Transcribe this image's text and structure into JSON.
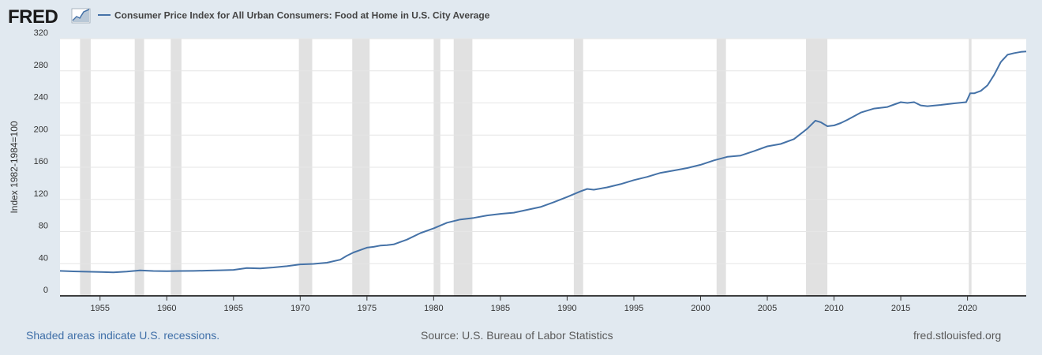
{
  "header": {
    "logo_text": "FRED",
    "legend_label": "Consumer Price Index for All Urban Consumers: Food at Home in U.S. City Average"
  },
  "footer": {
    "recessions_note": "Shaded areas indicate U.S. recessions.",
    "source": "Source: U.S. Bureau of Labor Statistics",
    "site": "fred.stlouisfed.org"
  },
  "colors": {
    "line": "#4572a7",
    "recession": "#e1e1e1",
    "plot_bg": "#ffffff",
    "page_bg": "#e1e9f0",
    "grid": "#e6e6e6",
    "footer_link": "#3f6fa8",
    "footer_gray": "#5a5a5a"
  },
  "chart_data": {
    "type": "line",
    "title": "",
    "xlabel": "",
    "ylabel": "Index 1982-1984=100",
    "xlim": [
      1952.0,
      2024.4
    ],
    "ylim": [
      0,
      320
    ],
    "y_ticks": [
      0,
      40,
      80,
      120,
      160,
      200,
      240,
      280,
      320
    ],
    "x_ticks": [
      1955,
      1960,
      1965,
      1970,
      1975,
      1980,
      1985,
      1990,
      1995,
      2000,
      2005,
      2010,
      2015,
      2020
    ],
    "grid": true,
    "legend_position": "top-left",
    "recessions": [
      [
        1953.5,
        1954.3
      ],
      [
        1957.6,
        1958.3
      ],
      [
        1960.3,
        1961.1
      ],
      [
        1969.9,
        1970.9
      ],
      [
        1973.9,
        1975.2
      ],
      [
        1980.0,
        1980.5
      ],
      [
        1981.5,
        1982.9
      ],
      [
        1990.5,
        1991.2
      ],
      [
        2001.2,
        2001.9
      ],
      [
        2007.9,
        2009.5
      ],
      [
        2020.1,
        2020.3
      ]
    ],
    "series": [
      {
        "name": "Consumer Price Index for All Urban Consumers: Food at Home in U.S. City Average",
        "x": [
          1952.0,
          1953.0,
          1954.0,
          1955.0,
          1956.0,
          1957.0,
          1958.0,
          1959.0,
          1960.0,
          1961.0,
          1962.0,
          1963.0,
          1964.0,
          1965.0,
          1966.0,
          1967.0,
          1968.0,
          1969.0,
          1970.0,
          1971.0,
          1972.0,
          1973.0,
          1973.5,
          1974.0,
          1974.5,
          1975.0,
          1975.5,
          1976.0,
          1976.5,
          1977.0,
          1978.0,
          1979.0,
          1980.0,
          1981.0,
          1982.0,
          1983.0,
          1984.0,
          1985.0,
          1986.0,
          1987.0,
          1988.0,
          1989.0,
          1990.0,
          1991.0,
          1991.5,
          1992.0,
          1993.0,
          1994.0,
          1995.0,
          1996.0,
          1997.0,
          1998.0,
          1999.0,
          2000.0,
          2001.0,
          2002.0,
          2003.0,
          2004.0,
          2005.0,
          2006.0,
          2007.0,
          2008.0,
          2008.6,
          2009.0,
          2009.5,
          2010.0,
          2010.5,
          2011.0,
          2012.0,
          2013.0,
          2014.0,
          2014.5,
          2015.0,
          2015.5,
          2016.0,
          2016.5,
          2017.0,
          2018.0,
          2019.0,
          2019.9,
          2020.2,
          2020.5,
          2021.0,
          2021.5,
          2022.0,
          2022.5,
          2023.0,
          2023.5,
          2024.0,
          2024.4
        ],
        "values": [
          31.0,
          30.4,
          30.0,
          29.6,
          29.3,
          30.2,
          31.6,
          30.9,
          30.6,
          30.9,
          31.0,
          31.4,
          31.8,
          32.3,
          34.6,
          34.2,
          35.3,
          36.9,
          39.2,
          39.8,
          41.2,
          45.0,
          50.0,
          54.0,
          57.0,
          60.0,
          61.0,
          62.5,
          63.0,
          64.0,
          70.0,
          78.0,
          84.0,
          91.0,
          95.0,
          97.0,
          100.0,
          102.0,
          103.5,
          107.0,
          110.5,
          116.5,
          123.0,
          130.0,
          133.0,
          132.0,
          135.0,
          139.0,
          144.0,
          148.0,
          153.0,
          156.0,
          159.0,
          163.0,
          168.5,
          173.0,
          174.5,
          180.0,
          186.0,
          189.0,
          195.0,
          208.0,
          218.0,
          216.0,
          211.0,
          212.0,
          215.0,
          219.0,
          228.0,
          233.0,
          235.0,
          238.0,
          241.0,
          240.0,
          241.0,
          237.0,
          236.0,
          237.5,
          239.5,
          241.0,
          252.0,
          252.0,
          255.0,
          262.0,
          275.0,
          291.0,
          300.0,
          302.0,
          303.5,
          304.0
        ]
      }
    ]
  }
}
